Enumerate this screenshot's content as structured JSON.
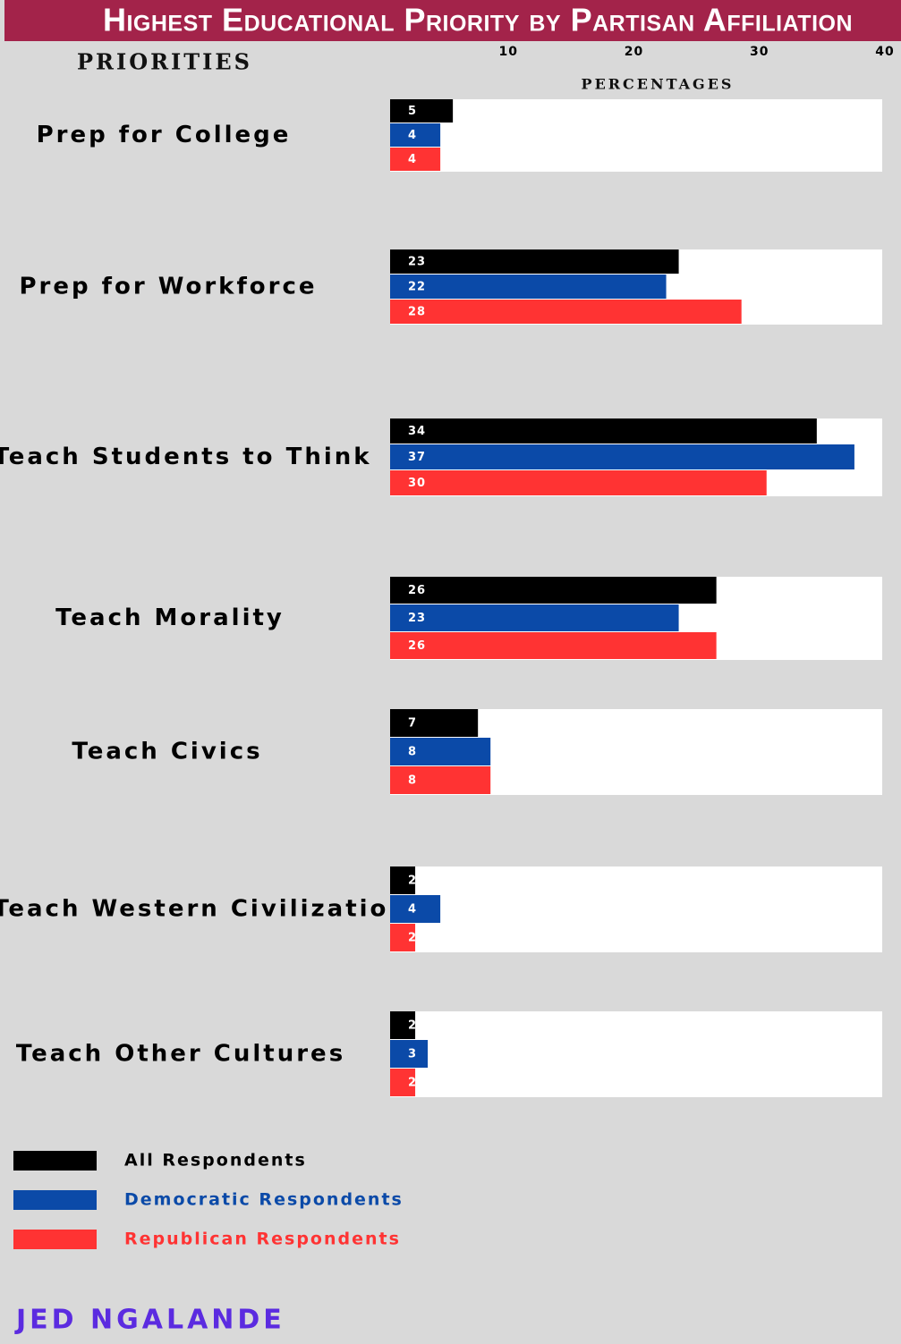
{
  "chart_data": {
    "type": "bar",
    "orientation": "horizontal",
    "title": "Highest Educational Priority by Partisan Affiliation",
    "y_axis_label": "PRIORITIES",
    "x_axis_label": "PERCENTAGES",
    "author": "JED NGALANDE",
    "categories": [
      "Prep for College",
      "Prep for Workforce",
      "Teach Students to Think",
      "Teach Morality",
      "Teach Civics",
      "Teach Western Civilization",
      "Teach Other Cultures"
    ],
    "series": [
      {
        "name": "All Respondents",
        "color": "#000000",
        "values": [
          5,
          23,
          34,
          26,
          7,
          2,
          2
        ]
      },
      {
        "name": "Democratic Respondents",
        "color": "#0b4aa8",
        "values": [
          4,
          22,
          37,
          23,
          8,
          4,
          3
        ]
      },
      {
        "name": "Republican Respondents",
        "color": "#ff3333",
        "values": [
          4,
          28,
          30,
          26,
          8,
          2,
          2
        ]
      }
    ],
    "xlim": [
      0,
      40
    ],
    "xticks": [
      10,
      20,
      30,
      40
    ]
  }
}
